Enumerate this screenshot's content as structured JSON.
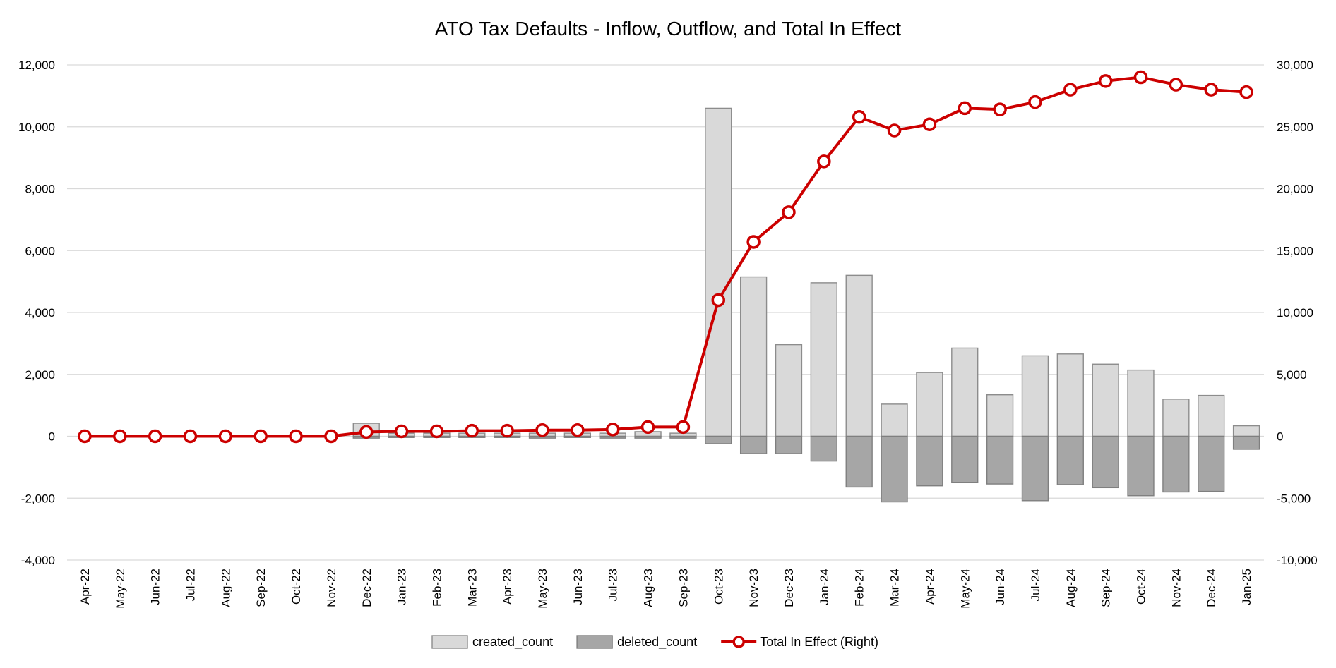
{
  "chart_data": {
    "type": "bar",
    "title": "ATO Tax Defaults - Inflow, Outflow, and Total In Effect",
    "xlabel": "",
    "ylabel": "",
    "y2label": "",
    "categories": [
      "Apr-22",
      "May-22",
      "Jun-22",
      "Jul-22",
      "Aug-22",
      "Sep-22",
      "Oct-22",
      "Nov-22",
      "Dec-22",
      "Jan-23",
      "Feb-23",
      "Mar-23",
      "Apr-23",
      "May-23",
      "Jun-23",
      "Jul-23",
      "Aug-23",
      "Sep-23",
      "Oct-23",
      "Nov-23",
      "Dec-23",
      "Jan-24",
      "Feb-24",
      "Mar-24",
      "Apr-24",
      "May-24",
      "Jun-24",
      "Jul-24",
      "Aug-24",
      "Sep-24",
      "Oct-24",
      "Nov-24",
      "Dec-24",
      "Jan-25"
    ],
    "ylim": [
      -4000,
      12000
    ],
    "y2lim": [
      -10000,
      30000
    ],
    "yticks": [
      "-4,000",
      "-2,000",
      "0",
      "2,000",
      "4,000",
      "6,000",
      "8,000",
      "10,000",
      "12,000"
    ],
    "y2ticks": [
      "-10,000",
      "-5,000",
      "0",
      "5,000",
      "10,000",
      "15,000",
      "20,000",
      "25,000",
      "30,000"
    ],
    "grid": true,
    "legend_position": "bottom",
    "series": [
      {
        "name": "created_count",
        "kind": "bar",
        "axis": "left",
        "color": "#d9d9d9",
        "stroke": "#8c8c8c",
        "values": [
          0,
          0,
          0,
          0,
          0,
          0,
          0,
          0,
          420,
          100,
          100,
          100,
          100,
          100,
          100,
          100,
          150,
          100,
          10600,
          5150,
          2960,
          4960,
          5200,
          1040,
          2060,
          2850,
          1340,
          2600,
          2660,
          2330,
          2140,
          1200,
          1320,
          340
        ]
      },
      {
        "name": "deleted_count",
        "kind": "bar",
        "axis": "left",
        "color": "#a6a6a6",
        "stroke": "#7f7f7f",
        "values": [
          0,
          0,
          0,
          0,
          0,
          0,
          0,
          0,
          -60,
          -40,
          -40,
          -40,
          -40,
          -60,
          -40,
          -60,
          -60,
          -60,
          -240,
          -560,
          -560,
          -800,
          -1640,
          -2120,
          -1600,
          -1500,
          -1540,
          -2080,
          -1560,
          -1660,
          -1920,
          -1800,
          -1780,
          -420
        ]
      },
      {
        "name": "Total In Effect (Right)",
        "kind": "line",
        "axis": "right",
        "color": "#cc0000",
        "values": [
          0,
          0,
          0,
          0,
          0,
          0,
          0,
          0,
          350,
          400,
          400,
          450,
          450,
          500,
          500,
          550,
          750,
          750,
          11000,
          15700,
          18100,
          22200,
          25800,
          24700,
          25200,
          26500,
          26400,
          27000,
          28000,
          28700,
          29000,
          28400,
          28000,
          27800
        ]
      }
    ]
  }
}
